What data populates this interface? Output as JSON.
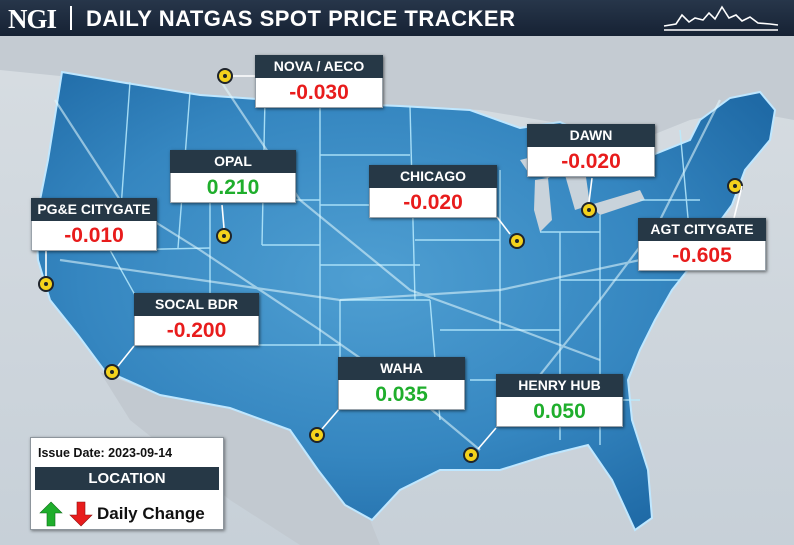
{
  "header": {
    "logo": "NGI",
    "title": "DAILY NATGAS SPOT PRICE TRACKER"
  },
  "hubs": [
    {
      "id": "nova-aeco",
      "name": "NOVA / AECO",
      "change": "-0.030",
      "direction": "down"
    },
    {
      "id": "dawn",
      "name": "DAWN",
      "change": "-0.020",
      "direction": "down"
    },
    {
      "id": "opal",
      "name": "OPAL",
      "change": "0.210",
      "direction": "up"
    },
    {
      "id": "chicago",
      "name": "CHICAGO",
      "change": "-0.020",
      "direction": "down"
    },
    {
      "id": "pge-citygate",
      "name": "PG&E CITYGATE",
      "change": "-0.010",
      "direction": "down"
    },
    {
      "id": "agt-citygate",
      "name": "AGT CITYGATE",
      "change": "-0.605",
      "direction": "down"
    },
    {
      "id": "socal-bdr",
      "name": "SOCAL BDR",
      "change": "-0.200",
      "direction": "down"
    },
    {
      "id": "waha",
      "name": "WAHA",
      "change": "0.035",
      "direction": "up"
    },
    {
      "id": "henry-hub",
      "name": "HENRY HUB",
      "change": "0.050",
      "direction": "up"
    }
  ],
  "legend": {
    "issue_date": "Issue Date: 2023-09-14",
    "location_label": "LOCATION",
    "change_label": "Daily Change"
  },
  "colors": {
    "positive": "#1fae2c",
    "negative": "#e81c1c",
    "header_bg": "#263846",
    "pin": "#f4d21c",
    "map_blue": "#2f7fb8"
  }
}
